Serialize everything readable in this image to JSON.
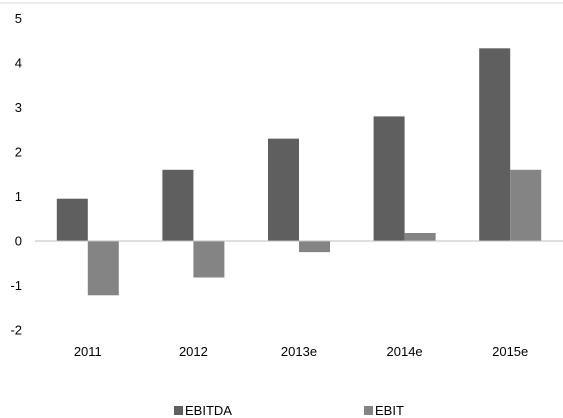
{
  "chart_data": {
    "type": "bar",
    "categories": [
      "2011",
      "2012",
      "2013e",
      "2014e",
      "2015e"
    ],
    "series": [
      {
        "name": "EBITDA",
        "values": [
          0.95,
          1.6,
          2.3,
          2.8,
          4.33
        ],
        "color": "#5f5f5f"
      },
      {
        "name": "EBIT",
        "values": [
          -1.22,
          -0.82,
          -0.25,
          0.18,
          1.6
        ],
        "color": "#848484"
      }
    ],
    "title": "",
    "xlabel": "",
    "ylabel": "",
    "ylim": [
      -2,
      5
    ],
    "yticks": [
      "5",
      "4",
      "3",
      "2",
      "1",
      "0",
      "-1",
      "-2"
    ],
    "grid": false,
    "legend": "bottom"
  }
}
